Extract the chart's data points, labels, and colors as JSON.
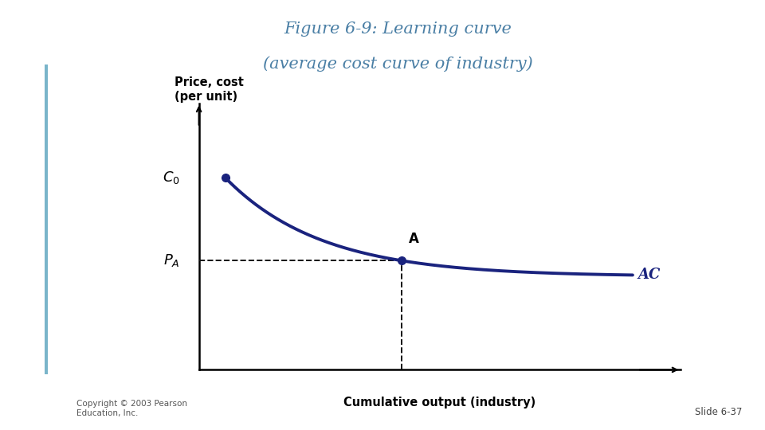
{
  "title_bold": "Figure 6-9",
  "title_rest_line1": ": Learning curve",
  "title_line2": "(average cost curve of industry)",
  "title_color": "#4a7fa5",
  "ylabel": "Price, cost\n(per unit)",
  "xlabel": "Cumulative output (industry)",
  "curve_color": "#1a237e",
  "curve_linewidth": 2.8,
  "point_color": "#1a237e",
  "point_size": 7,
  "dashed_color": "#111111",
  "ac_label": "AC",
  "ac_label_color": "#1a237e",
  "background_color": "#ffffff",
  "copyright_text": "Copyright © 2003 Pearson\nEducation, Inc.",
  "slide_text": "Slide 6-37",
  "left_bar_color": "#7ab5ca",
  "xlim": [
    0,
    10
  ],
  "ylim": [
    0,
    10
  ],
  "c0_y": 7.2,
  "pa_y": 3.5,
  "a_x": 4.2,
  "curve_x_start": 0.55,
  "curve_x_end": 9.0,
  "k": 0.5
}
